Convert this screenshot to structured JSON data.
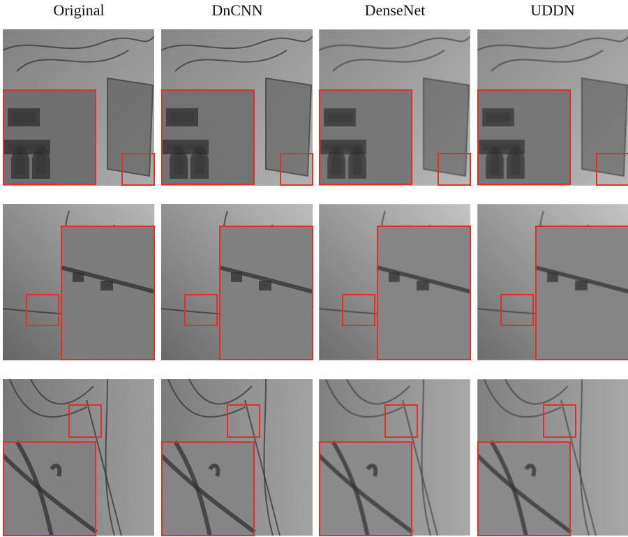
{
  "columns": [
    "Original",
    "DnCNN",
    "DenseNet",
    "UDDN"
  ]
}
